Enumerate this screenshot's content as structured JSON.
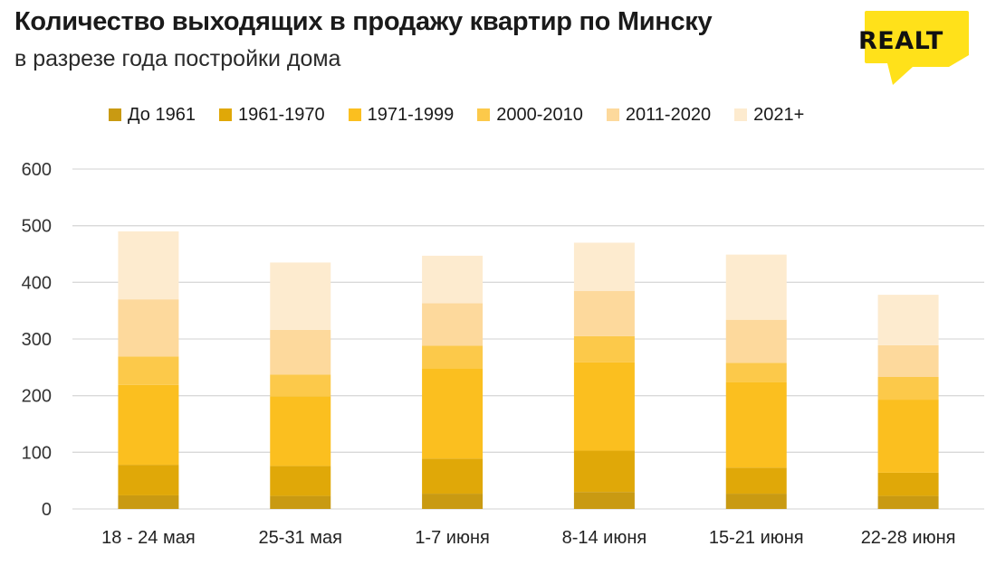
{
  "header": {
    "title": "Количество выходящих в продажу квартир по Минску",
    "subtitle": "в разрезе года постройки дома",
    "logo_text": "REALT"
  },
  "colors": {
    "logo_yellow": "#ffe11a",
    "gridline": "#d9d9d9",
    "series": [
      "#c99a12",
      "#e0a808",
      "#fbbf1f",
      "#fcc94a",
      "#fdd99c",
      "#fdebcf"
    ]
  },
  "chart_data": {
    "type": "bar",
    "stacked": true,
    "categories": [
      "18 - 24 мая",
      "25-31 мая",
      "1-7 июня",
      "8-14 июня",
      "15-21 июня",
      "22-28 июня"
    ],
    "series": [
      {
        "name": "До 1961",
        "values": [
          24,
          23,
          27,
          30,
          27,
          23
        ]
      },
      {
        "name": "1961-1970",
        "values": [
          54,
          53,
          62,
          73,
          46,
          41
        ]
      },
      {
        "name": "1971-1999",
        "values": [
          141,
          123,
          159,
          156,
          151,
          129
        ]
      },
      {
        "name": "2000-2010",
        "values": [
          50,
          38,
          40,
          46,
          34,
          40
        ]
      },
      {
        "name": "2011-2020",
        "values": [
          101,
          79,
          75,
          80,
          76,
          56
        ]
      },
      {
        "name": "2021+",
        "values": [
          120,
          119,
          84,
          85,
          115,
          89
        ]
      }
    ],
    "yticks": [
      0,
      100,
      200,
      300,
      400,
      500,
      600
    ],
    "ylim": [
      0,
      600
    ],
    "grid": true,
    "legend_position": "top"
  }
}
